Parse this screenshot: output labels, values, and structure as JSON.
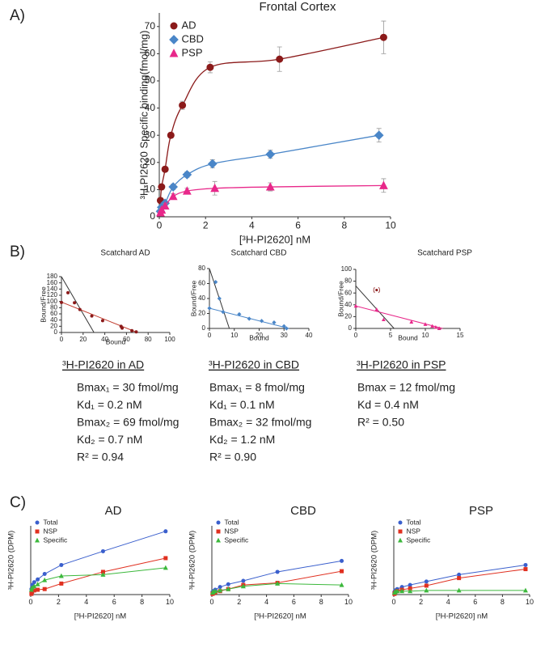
{
  "panel_labels": [
    "A)",
    "B)",
    "C)"
  ],
  "chart_data": [
    {
      "type": "scatter",
      "title": "Frontal Cortex",
      "xlabel": "[³H-PI2620] nM",
      "ylabel": "³H-PI2620 Specific binding(fmol/mg)",
      "xlim": [
        0,
        10
      ],
      "xticks": [
        0,
        2,
        4,
        6,
        8,
        10
      ],
      "ylim": [
        0,
        75
      ],
      "yticks": [
        0,
        10,
        20,
        30,
        40,
        50,
        60,
        70
      ],
      "legend": "upper left",
      "fit_curve": true,
      "series": [
        {
          "name": "AD",
          "color": "#8b1a1a",
          "marker": "circle",
          "x": [
            0.05,
            0.1,
            0.25,
            0.5,
            1.0,
            2.2,
            5.2,
            9.7
          ],
          "values": [
            6,
            11,
            17.5,
            30,
            41,
            55,
            58,
            66
          ],
          "errors": [
            0.8,
            0.8,
            1,
            1,
            1.5,
            2,
            4.5,
            6
          ]
        },
        {
          "name": "CBD",
          "color": "#4a86c8",
          "marker": "diamond",
          "x": [
            0.05,
            0.1,
            0.25,
            0.6,
            1.2,
            2.3,
            4.8,
            9.5
          ],
          "values": [
            2,
            3.5,
            5,
            11,
            15.5,
            19.5,
            23,
            30
          ],
          "errors": [
            0.5,
            0.5,
            0.8,
            1,
            1,
            1.5,
            1.5,
            2.5
          ]
        },
        {
          "name": "PSP",
          "color": "#e8288a",
          "marker": "triangle",
          "x": [
            0.05,
            0.1,
            0.25,
            0.6,
            1.2,
            2.4,
            4.8,
            9.7
          ],
          "values": [
            1.5,
            2.5,
            4,
            7.5,
            9.5,
            10.5,
            11,
            11.5
          ],
          "errors": [
            0.5,
            0.5,
            0.8,
            1,
            1,
            2.5,
            1.5,
            2.5
          ]
        }
      ]
    },
    {
      "type": "scatchard",
      "title": "Scatchard AD",
      "xlabel": "Bound",
      "ylabel": "Bound/Free",
      "xlim": [
        0,
        100
      ],
      "xticks": [
        0,
        20,
        40,
        60,
        80,
        100
      ],
      "ylim": [
        0,
        180
      ],
      "yticks": [
        0,
        20,
        40,
        60,
        80,
        100,
        120,
        140,
        160,
        180
      ],
      "series": [
        {
          "color": "#8b1a1a",
          "marker": "circle",
          "x": [
            0,
            6,
            12,
            17,
            28,
            38,
            55,
            56,
            65,
            69
          ],
          "values": [
            97,
            128,
            96,
            74,
            53,
            38,
            20,
            14,
            6,
            2
          ]
        }
      ],
      "lines": [
        {
          "color": "#333333",
          "x": [
            0,
            30
          ],
          "y": [
            180,
            0
          ]
        },
        {
          "color": "#c0392b",
          "x": [
            0,
            70
          ],
          "y": [
            98,
            0
          ]
        }
      ]
    },
    {
      "type": "scatchard",
      "title": "Scatchard CBD",
      "xlabel": "Bound",
      "ylabel": "Bound/Free",
      "xlim": [
        0,
        40
      ],
      "xticks": [
        0,
        10,
        20,
        30,
        40
      ],
      "ylim": [
        0,
        80
      ],
      "yticks": [
        0,
        20,
        40,
        60,
        80
      ],
      "series": [
        {
          "color": "#4a86c8",
          "marker": "diamond",
          "x": [
            0,
            2.5,
            4,
            5.5,
            12,
            16,
            21,
            26,
            30,
            31
          ],
          "values": [
            27,
            62,
            40,
            22,
            19,
            13,
            10,
            8,
            3,
            0
          ]
        }
      ],
      "lines": [
        {
          "color": "#333333",
          "x": [
            0,
            8
          ],
          "y": [
            80,
            0
          ]
        },
        {
          "color": "#4a86c8",
          "x": [
            0,
            32
          ],
          "y": [
            27,
            0
          ]
        }
      ]
    },
    {
      "type": "scatchard",
      "title": "Scatchard PSP",
      "xlabel": "Bound",
      "ylabel": "Bound/Free",
      "xlim": [
        0,
        15
      ],
      "xticks": [
        0,
        5,
        10,
        15
      ],
      "ylim": [
        0,
        100
      ],
      "yticks": [
        0,
        20,
        40,
        60,
        80,
        100
      ],
      "series": [
        {
          "color": "#e8288a",
          "marker": "triangle",
          "x": [
            0,
            3,
            4,
            8,
            10,
            11,
            11.5,
            12
          ],
          "values": [
            38,
            32,
            15,
            11,
            7,
            4,
            2,
            0
          ]
        }
      ],
      "excluded": {
        "x": [
          3
        ],
        "values": [
          65
        ]
      },
      "lines": [
        {
          "color": "#333333",
          "x": [
            0,
            5.5
          ],
          "y": [
            72,
            0
          ]
        },
        {
          "color": "#e8288a",
          "x": [
            0,
            12.5
          ],
          "y": [
            38,
            0
          ]
        }
      ]
    },
    {
      "type": "line",
      "title": "AD",
      "xlabel": "[³H-PI2620] nM",
      "ylabel": "³H-PI2620 (DPM)",
      "xlim": [
        0,
        10
      ],
      "xticks": [
        0,
        2,
        4,
        6,
        8,
        10
      ],
      "ylim": [
        0,
        5000
      ],
      "legend": "upper left",
      "series": [
        {
          "name": "Total",
          "color": "#3a5fcd",
          "marker": "circle",
          "x": [
            0.05,
            0.1,
            0.25,
            0.5,
            1.0,
            2.2,
            5.2,
            9.7
          ],
          "values": [
            400,
            700,
            900,
            1100,
            1500,
            2150,
            3150,
            4600
          ]
        },
        {
          "name": "NSP",
          "color": "#e03020",
          "marker": "square",
          "x": [
            0.05,
            0.1,
            0.25,
            0.5,
            1.0,
            2.2,
            5.2,
            9.7
          ],
          "values": [
            50,
            200,
            300,
            350,
            400,
            800,
            1650,
            2650
          ]
        },
        {
          "name": "Specific",
          "color": "#3cb83c",
          "marker": "triangle",
          "x": [
            0.05,
            0.1,
            0.25,
            0.5,
            1.0,
            2.2,
            5.2,
            9.7
          ],
          "values": [
            350,
            500,
            600,
            750,
            1050,
            1350,
            1450,
            1950
          ]
        }
      ]
    },
    {
      "type": "line",
      "title": "CBD",
      "xlabel": "[³H-PI2620] nM",
      "ylabel": "³H-PI2620 (DPM)",
      "xlim": [
        0,
        10
      ],
      "xticks": [
        0,
        2,
        4,
        6,
        8,
        10
      ],
      "ylim": [
        0,
        5000
      ],
      "legend": "upper left",
      "series": [
        {
          "name": "Total",
          "color": "#3a5fcd",
          "marker": "circle",
          "x": [
            0.05,
            0.1,
            0.25,
            0.6,
            1.2,
            2.3,
            4.8,
            9.5
          ],
          "values": [
            200,
            250,
            350,
            550,
            750,
            1000,
            1650,
            2450
          ]
        },
        {
          "name": "NSP",
          "color": "#e03020",
          "marker": "square",
          "x": [
            0.05,
            0.1,
            0.25,
            0.6,
            1.2,
            2.3,
            4.8,
            9.5
          ],
          "values": [
            50,
            100,
            150,
            250,
            400,
            700,
            850,
            1700
          ]
        },
        {
          "name": "Specific",
          "color": "#3cb83c",
          "marker": "triangle",
          "x": [
            0.05,
            0.1,
            0.25,
            0.6,
            1.2,
            2.3,
            4.8,
            9.5
          ],
          "values": [
            150,
            200,
            250,
            300,
            400,
            600,
            800,
            700
          ]
        }
      ]
    },
    {
      "type": "line",
      "title": "PSP",
      "xlabel": "[³H-PI2620] nM",
      "ylabel": "³H-PI2620 (DPM)",
      "xlim": [
        0,
        10
      ],
      "xticks": [
        0,
        2,
        4,
        6,
        8,
        10
      ],
      "ylim": [
        0,
        5000
      ],
      "legend": "upper left",
      "series": [
        {
          "name": "Total",
          "color": "#3a5fcd",
          "marker": "circle",
          "x": [
            0.05,
            0.1,
            0.25,
            0.6,
            1.2,
            2.4,
            4.8,
            9.7
          ],
          "values": [
            200,
            300,
            400,
            550,
            700,
            950,
            1450,
            2150
          ]
        },
        {
          "name": "NSP",
          "color": "#e03020",
          "marker": "square",
          "x": [
            0.05,
            0.1,
            0.25,
            0.6,
            1.2,
            2.4,
            4.8,
            9.7
          ],
          "values": [
            50,
            150,
            250,
            350,
            450,
            650,
            1200,
            1850
          ]
        },
        {
          "name": "Specific",
          "color": "#3cb83c",
          "marker": "triangle",
          "x": [
            0.05,
            0.1,
            0.25,
            0.6,
            1.2,
            2.4,
            4.8,
            9.7
          ],
          "values": [
            150,
            200,
            250,
            250,
            250,
            300,
            300,
            300
          ]
        }
      ]
    }
  ],
  "results": [
    {
      "heading": "³H-PI2620 in AD",
      "lines": [
        "Bmax₁ = 30 fmol/mg",
        "Kd₁ = 0.2 nM",
        "Bmax₂ = 69 fmol/mg",
        "Kd₂ = 0.7 nM",
        "R² = 0.94"
      ]
    },
    {
      "heading": "³H-PI2620 in CBD",
      "lines": [
        "Bmax₁ = 8 fmol/mg",
        "Kd₁ = 0.1 nM",
        "Bmax₂ = 32 fmol/mg",
        "Kd₂ = 1.2 nM",
        "R² = 0.90"
      ]
    },
    {
      "heading": "³H-PI2620 in PSP",
      "lines": [
        "Bmax = 12 fmol/mg",
        "Kd = 0.4 nM",
        "R² = 0.50"
      ]
    }
  ]
}
